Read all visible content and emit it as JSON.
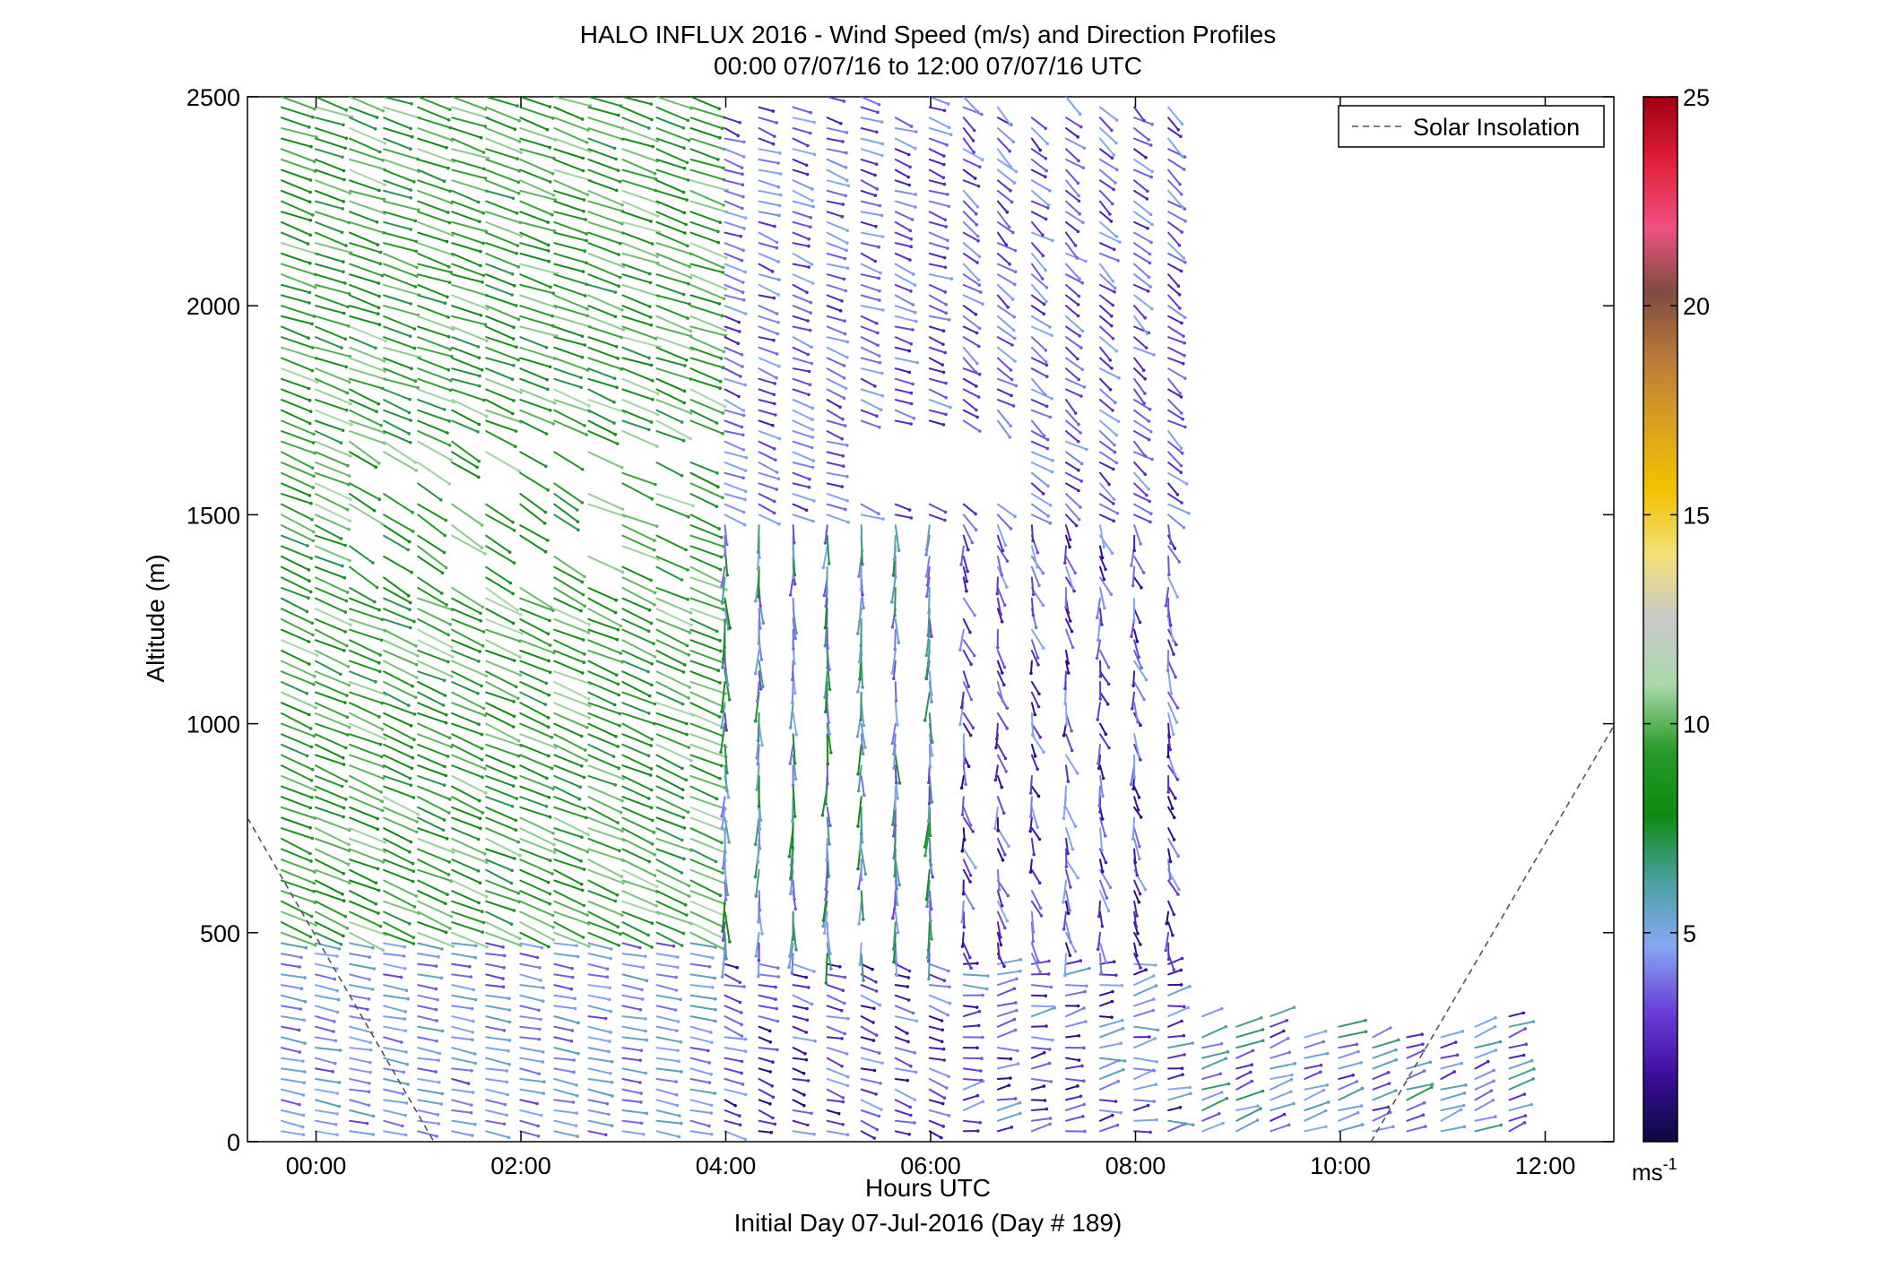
{
  "chart_data": {
    "type": "quiver",
    "title": "HALO INFLUX 2016 - Wind Speed (m/s) and Direction Profiles",
    "subtitle": "00:00 07/07/16 to 12:00 07/07/16  UTC",
    "xlabel": "Hours UTC",
    "xlabel2": "Initial Day 07-Jul-2016 (Day # 189)",
    "ylabel": "Altitude (m)",
    "xlim": [
      -0.67,
      12.67
    ],
    "ylim": [
      0,
      2500
    ],
    "x_ticks": [
      0,
      2,
      4,
      6,
      8,
      10,
      12
    ],
    "x_tick_labels": [
      "00:00",
      "02:00",
      "04:00",
      "06:00",
      "08:00",
      "10:00",
      "12:00"
    ],
    "y_ticks": [
      0,
      500,
      1000,
      1500,
      2000,
      2500
    ],
    "y_tick_labels": [
      "0",
      "500",
      "1000",
      "1500",
      "2000",
      "2500"
    ],
    "legend": {
      "position": "top-right",
      "entries": [
        "Solar Insolation"
      ]
    },
    "colorbar": {
      "range": [
        0,
        25
      ],
      "ticks": [
        5,
        10,
        15,
        20,
        25
      ],
      "tick_labels": [
        "5",
        "10",
        "15",
        "20",
        "25"
      ],
      "unit": "ms",
      "unit_exponent": "-1",
      "colors": [
        "#0b0a3e",
        "#3a0d9a",
        "#6a3fd8",
        "#87a8f3",
        "#4aa0a0",
        "#0f8a10",
        "#2a9a2a",
        "#a9d8a9",
        "#c9c9c9",
        "#f3e077",
        "#f1c100",
        "#d9a020",
        "#b97a3a",
        "#7d4d40",
        "#f05080",
        "#e0203a",
        "#a00010"
      ]
    },
    "solar_insolation_line": {
      "segments": [
        [
          [
            -0.67,
            775
          ],
          [
            1.15,
            0
          ]
        ],
        [
          [
            10.3,
            0
          ],
          [
            12.67,
            995
          ]
        ]
      ]
    },
    "wind_profiles": {
      "time_step_h": 0.333,
      "altitude_step_m": 25,
      "arrow_length_units": "proportional to speed",
      "regimes": [
        {
          "hours": [
            -0.25,
            4.0
          ],
          "altitude": [
            500,
            2500
          ],
          "speed_ms": [
            7,
            11
          ],
          "direction": "from WNW (arrows pointing ESE)"
        },
        {
          "hours": [
            -0.25,
            4.0
          ],
          "altitude": [
            0,
            500
          ],
          "speed_ms": [
            3,
            6
          ],
          "direction": "from W"
        },
        {
          "hours": [
            4.0,
            6.3
          ],
          "altitude": [
            500,
            1500
          ],
          "speed_ms": [
            3,
            8
          ],
          "direction": "near northerly, arrows pointing S"
        },
        {
          "hours": [
            4.0,
            8.5
          ],
          "altitude": [
            1500,
            2500
          ],
          "speed_ms": [
            2,
            5
          ],
          "direction": "from W to NW"
        },
        {
          "hours": [
            6.3,
            8.5
          ],
          "altitude": [
            500,
            1500
          ],
          "speed_ms": [
            1,
            5
          ],
          "direction": "from N to NW"
        },
        {
          "hours": [
            4.0,
            11.7
          ],
          "altitude": [
            0,
            500
          ],
          "speed_ms": [
            1,
            6
          ],
          "direction": "from W to SW"
        }
      ]
    }
  }
}
